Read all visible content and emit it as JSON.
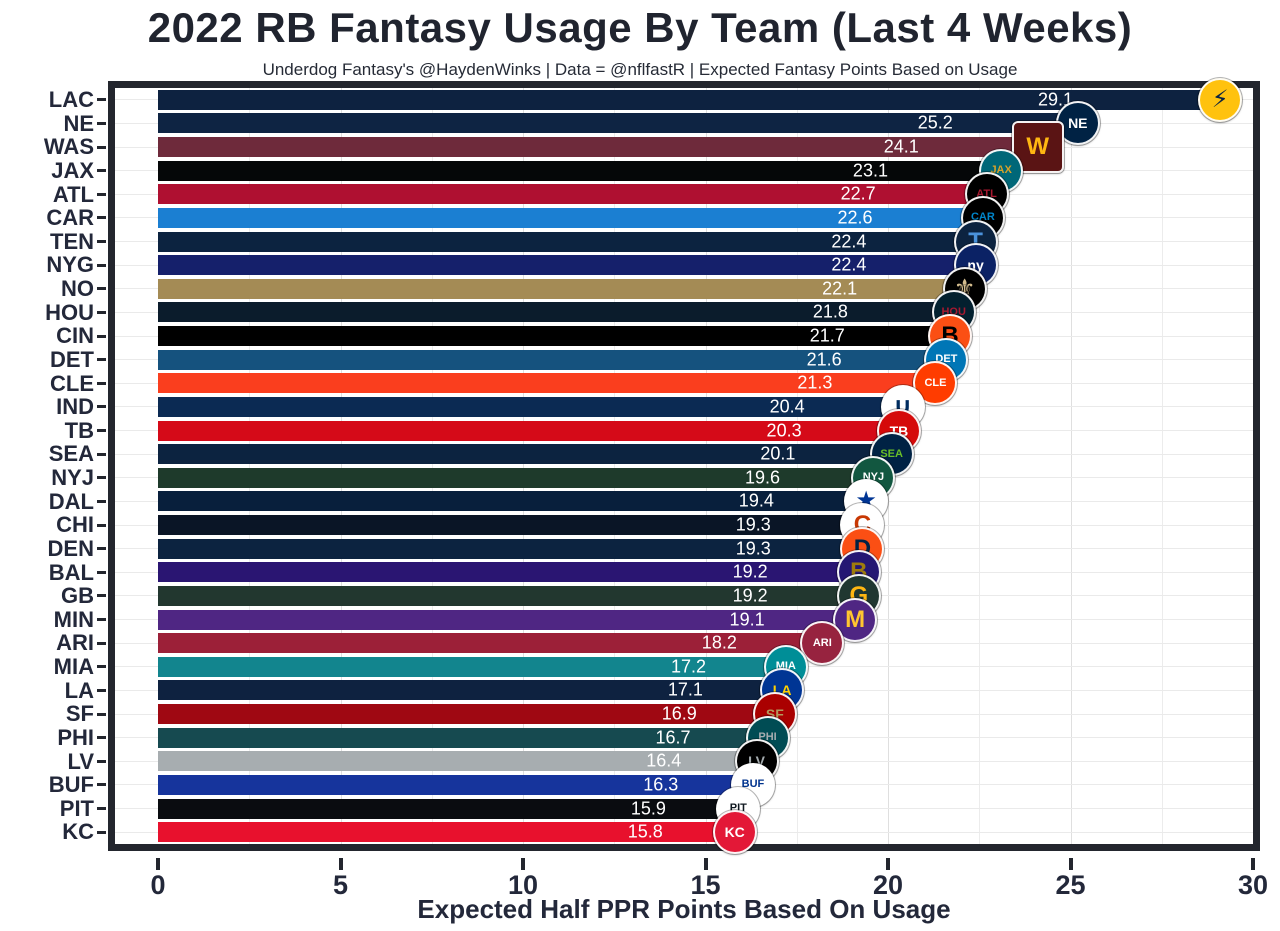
{
  "header": {
    "title": "2022 RB Fantasy Usage By Team (Last 4 Weeks)",
    "subtitle": "Underdog Fantasy's @HaydenWinks | Data = @nflfastR | Expected Fantasy Points Based on Usage"
  },
  "chart_data": {
    "type": "bar",
    "orientation": "horizontal",
    "title": "2022 RB Fantasy Usage By Team (Last 4 Weeks)",
    "subtitle": "Underdog Fantasy's @HaydenWinks | Data = @nflfastR | Expected Fantasy Points Based on Usage",
    "xlabel": "Expected Half PPR Points Based On Usage",
    "ylabel": "",
    "xlim": [
      0,
      30
    ],
    "x_ticks": [
      0,
      5,
      10,
      15,
      20,
      25,
      30
    ],
    "grid": "on",
    "legend": "none",
    "value_label_color": "#ffffff",
    "teams": [
      {
        "label": "LAC",
        "value": 29.1,
        "bar_color": "#0d2240",
        "logo": {
          "name": "chargers-bolt-logo",
          "bg": "#ffc20e",
          "fg": "#0a2342",
          "text": "⚡",
          "shape": "circle"
        }
      },
      {
        "label": "NE",
        "value": 25.2,
        "bar_color": "#0e2443",
        "logo": {
          "name": "patriots-logo",
          "bg": "#002244",
          "fg": "#ffffff",
          "text": "NE",
          "shape": "circle"
        }
      },
      {
        "label": "WAS",
        "value": 24.1,
        "bar_color": "#6e2a3b",
        "logo": {
          "name": "commanders-w-logo",
          "bg": "#5a1414",
          "fg": "#ffb612",
          "text": "W",
          "shape": "square"
        }
      },
      {
        "label": "JAX",
        "value": 23.1,
        "bar_color": "#050708",
        "logo": {
          "name": "jaguars-logo",
          "bg": "#006778",
          "fg": "#d7a22a",
          "text": "JAX",
          "shape": "circle"
        }
      },
      {
        "label": "ATL",
        "value": 22.7,
        "bar_color": "#af1031",
        "logo": {
          "name": "falcons-logo",
          "bg": "#000000",
          "fg": "#a71930",
          "text": "ATL",
          "shape": "circle"
        }
      },
      {
        "label": "CAR",
        "value": 22.6,
        "bar_color": "#1b7fd2",
        "logo": {
          "name": "panthers-logo",
          "bg": "#000000",
          "fg": "#0085ca",
          "text": "CAR",
          "shape": "circle"
        }
      },
      {
        "label": "TEN",
        "value": 22.4,
        "bar_color": "#0c2340",
        "logo": {
          "name": "titans-logo",
          "bg": "#0c2340",
          "fg": "#4b92db",
          "text": "T",
          "shape": "circle"
        }
      },
      {
        "label": "NYG",
        "value": 22.4,
        "bar_color": "#15206b",
        "logo": {
          "name": "giants-ny-logo",
          "bg": "#0b2265",
          "fg": "#ffffff",
          "text": "ny",
          "shape": "circle"
        }
      },
      {
        "label": "NO",
        "value": 22.1,
        "bar_color": "#a48b55",
        "logo": {
          "name": "saints-fleur-de-lis-logo",
          "bg": "#000000",
          "fg": "#d3bc8d",
          "text": "⚜",
          "shape": "circle"
        }
      },
      {
        "label": "HOU",
        "value": 21.8,
        "bar_color": "#0b1c2c",
        "logo": {
          "name": "texans-logo",
          "bg": "#03202f",
          "fg": "#a71930",
          "text": "HOU",
          "shape": "circle"
        }
      },
      {
        "label": "CIN",
        "value": 21.7,
        "bar_color": "#000000",
        "logo": {
          "name": "bengals-b-logo",
          "bg": "#fb4f14",
          "fg": "#000000",
          "text": "B",
          "shape": "circle"
        }
      },
      {
        "label": "DET",
        "value": 21.6,
        "bar_color": "#15527e",
        "logo": {
          "name": "lions-logo",
          "bg": "#0076b6",
          "fg": "#ffffff",
          "text": "DET",
          "shape": "circle"
        }
      },
      {
        "label": "CLE",
        "value": 21.3,
        "bar_color": "#fa3e1e",
        "logo": {
          "name": "browns-helmet-logo",
          "bg": "#ff3c00",
          "fg": "#ffffff",
          "text": "CLE",
          "shape": "circle"
        }
      },
      {
        "label": "IND",
        "value": 20.4,
        "bar_color": "#0b2a53",
        "logo": {
          "name": "colts-horseshoe-logo",
          "bg": "#ffffff",
          "fg": "#002c5f",
          "text": "∪",
          "shape": "circle"
        }
      },
      {
        "label": "TB",
        "value": 20.3,
        "bar_color": "#d50a18",
        "logo": {
          "name": "buccaneers-logo",
          "bg": "#d50a0a",
          "fg": "#ffffff",
          "text": "TB",
          "shape": "circle"
        }
      },
      {
        "label": "SEA",
        "value": 20.1,
        "bar_color": "#0c2340",
        "logo": {
          "name": "seahawks-logo",
          "bg": "#002244",
          "fg": "#69be28",
          "text": "SEA",
          "shape": "circle"
        }
      },
      {
        "label": "NYJ",
        "value": 19.6,
        "bar_color": "#1e3a2b",
        "logo": {
          "name": "jets-logo",
          "bg": "#125740",
          "fg": "#ffffff",
          "text": "NYJ",
          "shape": "circle"
        }
      },
      {
        "label": "DAL",
        "value": 19.4,
        "bar_color": "#081f3c",
        "logo": {
          "name": "cowboys-star-logo",
          "bg": "#ffffff",
          "fg": "#003594",
          "text": "★",
          "shape": "circle"
        }
      },
      {
        "label": "CHI",
        "value": 19.3,
        "bar_color": "#0a1526",
        "logo": {
          "name": "bears-c-logo",
          "bg": "#ffffff",
          "fg": "#c83803",
          "text": "C",
          "shape": "circle"
        }
      },
      {
        "label": "DEN",
        "value": 19.3,
        "bar_color": "#0c2340",
        "logo": {
          "name": "broncos-logo",
          "bg": "#fb4f14",
          "fg": "#002244",
          "text": "D",
          "shape": "circle"
        }
      },
      {
        "label": "BAL",
        "value": 19.2,
        "bar_color": "#2a1572",
        "logo": {
          "name": "ravens-logo",
          "bg": "#241773",
          "fg": "#9e7c0c",
          "text": "B",
          "shape": "circle"
        }
      },
      {
        "label": "GB",
        "value": 19.2,
        "bar_color": "#22372f",
        "logo": {
          "name": "packers-g-logo",
          "bg": "#203731",
          "fg": "#ffb612",
          "text": "G",
          "shape": "circle"
        }
      },
      {
        "label": "MIN",
        "value": 19.1,
        "bar_color": "#4f2683",
        "logo": {
          "name": "vikings-logo",
          "bg": "#4f2683",
          "fg": "#ffc62f",
          "text": "M",
          "shape": "circle"
        }
      },
      {
        "label": "ARI",
        "value": 18.2,
        "bar_color": "#9c2038",
        "logo": {
          "name": "cardinals-logo",
          "bg": "#97233f",
          "fg": "#ffffff",
          "text": "ARI",
          "shape": "circle"
        }
      },
      {
        "label": "MIA",
        "value": 17.2,
        "bar_color": "#12858e",
        "logo": {
          "name": "dolphins-logo",
          "bg": "#008e97",
          "fg": "#ffffff",
          "text": "MIA",
          "shape": "circle"
        }
      },
      {
        "label": "LA",
        "value": 17.1,
        "bar_color": "#0e2240",
        "logo": {
          "name": "rams-la-logo",
          "bg": "#003594",
          "fg": "#ffd100",
          "text": "LA",
          "shape": "circle"
        }
      },
      {
        "label": "SF",
        "value": 16.9,
        "bar_color": "#9f0812",
        "logo": {
          "name": "49ers-sf-logo",
          "bg": "#aa0000",
          "fg": "#b3995d",
          "text": "SF",
          "shape": "circle"
        }
      },
      {
        "label": "PHI",
        "value": 16.7,
        "bar_color": "#164a50",
        "logo": {
          "name": "eagles-logo",
          "bg": "#004c54",
          "fg": "#a5acaf",
          "text": "PHI",
          "shape": "circle"
        }
      },
      {
        "label": "LV",
        "value": 16.4,
        "bar_color": "#a7adb0",
        "logo": {
          "name": "raiders-shield-logo",
          "bg": "#000000",
          "fg": "#a5acaf",
          "text": "LV",
          "shape": "circle"
        }
      },
      {
        "label": "BUF",
        "value": 16.3,
        "bar_color": "#16349c",
        "logo": {
          "name": "bills-logo",
          "bg": "#ffffff",
          "fg": "#00338d",
          "text": "BUF",
          "shape": "circle"
        }
      },
      {
        "label": "PIT",
        "value": 15.9,
        "bar_color": "#0a0c10",
        "logo": {
          "name": "steelers-steelmark-logo",
          "bg": "#ffffff",
          "fg": "#101820",
          "text": "PIT",
          "shape": "circle"
        }
      },
      {
        "label": "KC",
        "value": 15.8,
        "bar_color": "#e8112d",
        "logo": {
          "name": "chiefs-arrowhead-logo",
          "bg": "#e31837",
          "fg": "#ffffff",
          "text": "KC",
          "shape": "circle"
        }
      }
    ]
  },
  "colors": {
    "panel_border": "#23262e",
    "axis_text": "#23283a",
    "grid_major": "#dfdfdf",
    "grid_minor": "#ececec",
    "background": "#ffffff"
  }
}
